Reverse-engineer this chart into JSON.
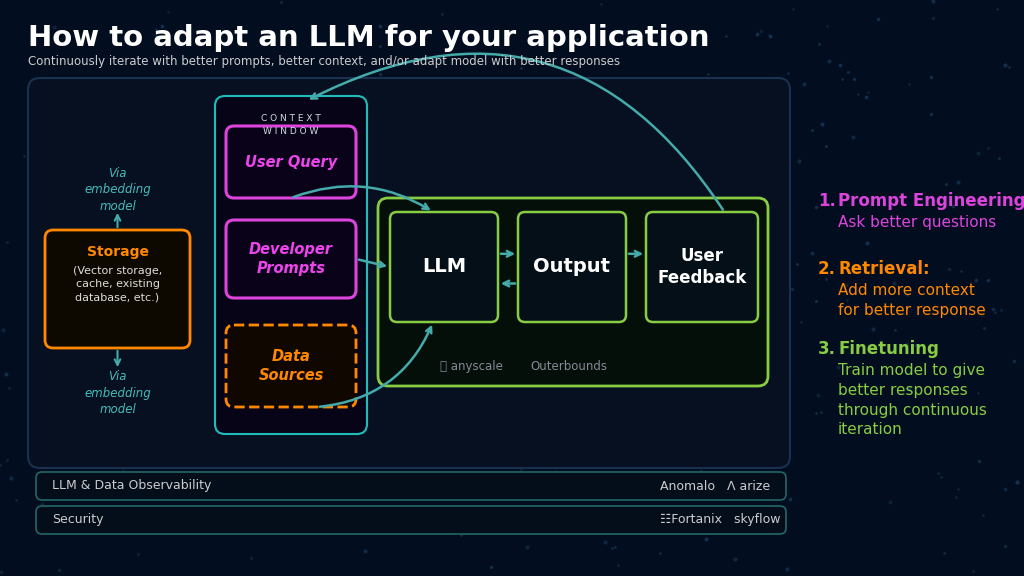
{
  "title": "How to adapt an LLM for your application",
  "subtitle": "Continuously iterate with better prompts, better context, and/or adapt model with better responses",
  "bg_color": "#020e1f",
  "title_color": "#ffffff",
  "subtitle_color": "#cccccc",
  "context_window_label": "C O N T E X T\nW I N D O W",
  "context_window_border": "#22bbbb",
  "user_query_label": "User Query",
  "user_query_border": "#dd44dd",
  "dev_prompts_label": "Developer\nPrompts",
  "dev_prompts_border": "#dd44dd",
  "data_sources_label": "Data\nSources",
  "data_sources_border": "#ff8800",
  "storage_label": "Storage\n(Vector storage,\ncache, existing\ndatabase, etc.)",
  "storage_border": "#ff8800",
  "storage_text_color": "#ff8800",
  "storage_body_color": "#ffffff",
  "via_embedding_color": "#44bbbb",
  "llm_label": "LLM",
  "llm_border": "#88cc44",
  "output_label": "Output",
  "output_border": "#88cc44",
  "user_feedback_label": "User\nFeedback",
  "user_feedback_border": "#88cc44",
  "arrow_color": "#44aaaa",
  "point1_title": "Prompt Engineering:",
  "point1_title_color": "#dd44dd",
  "point1_desc": "Ask better questions",
  "point1_desc_color": "#dd44dd",
  "point2_title": "Retrieval:",
  "point2_title_color": "#ff8800",
  "point2_desc": "Add more context\nfor better response",
  "point2_desc_color": "#ff8800",
  "point3_title": "Finetuning",
  "point3_title_color": "#88cc44",
  "point3_desc": "Train model to give\nbetter responses\nthrough continuous\niteration",
  "point3_desc_color": "#88cc44",
  "obs_label": "LLM & Data Observability",
  "obs_brands": "Anomalo   Λ arize",
  "sec_label": "Security",
  "sec_brands": "☷Fortanix   skyflow",
  "bar_text_color": "#cccccc",
  "bar_border_color": "#226666",
  "bar_fill_color": "#040e1a",
  "anyscale_label": "⎕ anyscale",
  "outerbounds_label": "Outerbounds",
  "brand_color": "#888899",
  "main_box_bg": "#071020",
  "main_box_border": "#1a3050",
  "cw_bg": "#080418",
  "inner_box_bg": "#050f18",
  "green_outer_bg": "#050f0a"
}
